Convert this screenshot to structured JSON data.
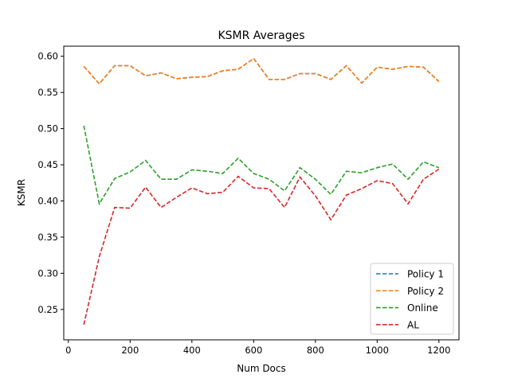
{
  "chart_data": {
    "type": "line",
    "title": "KSMR Averages",
    "xlabel": "Num Docs",
    "ylabel": "KSMR",
    "xlim": [
      -15,
      1265
    ],
    "ylim": [
      0.208,
      0.614
    ],
    "xticks": [
      "0",
      "200",
      "400",
      "600",
      "800",
      "1000",
      "1200"
    ],
    "xtick_values": [
      0,
      200,
      400,
      600,
      800,
      1000,
      1200
    ],
    "yticks": [
      "0.25",
      "0.30",
      "0.35",
      "0.40",
      "0.45",
      "0.50",
      "0.55",
      "0.60"
    ],
    "ytick_values": [
      0.25,
      0.3,
      0.35,
      0.4,
      0.45,
      0.5,
      0.55,
      0.6
    ],
    "legend_position": "lower-right",
    "grid": false,
    "x": [
      50,
      100,
      150,
      200,
      250,
      300,
      350,
      400,
      450,
      500,
      550,
      600,
      650,
      700,
      750,
      800,
      850,
      900,
      950,
      1000,
      1050,
      1100,
      1150,
      1200
    ],
    "series": [
      {
        "name": "Policy 1",
        "color": "#1f77b4",
        "values": [
          0.586,
          0.562,
          0.587,
          0.587,
          0.573,
          0.577,
          0.569,
          0.571,
          0.572,
          0.58,
          0.582,
          0.597,
          0.568,
          0.568,
          0.576,
          0.576,
          0.568,
          0.587,
          0.563,
          0.585,
          0.582,
          0.586,
          0.585,
          0.565
        ]
      },
      {
        "name": "Policy 2",
        "color": "#ff7f0e",
        "values": [
          0.586,
          0.562,
          0.587,
          0.587,
          0.573,
          0.577,
          0.569,
          0.571,
          0.572,
          0.58,
          0.582,
          0.597,
          0.568,
          0.568,
          0.576,
          0.576,
          0.568,
          0.587,
          0.563,
          0.585,
          0.582,
          0.586,
          0.585,
          0.565
        ]
      },
      {
        "name": "Online",
        "color": "#2ca02c",
        "values": [
          0.504,
          0.396,
          0.431,
          0.44,
          0.456,
          0.43,
          0.43,
          0.443,
          0.441,
          0.438,
          0.459,
          0.438,
          0.43,
          0.414,
          0.446,
          0.43,
          0.409,
          0.441,
          0.439,
          0.446,
          0.451,
          0.43,
          0.454,
          0.446
        ]
      },
      {
        "name": "AL",
        "color": "#d62728",
        "values": [
          0.229,
          0.323,
          0.391,
          0.39,
          0.419,
          0.391,
          0.405,
          0.418,
          0.41,
          0.412,
          0.434,
          0.418,
          0.417,
          0.391,
          0.433,
          0.407,
          0.374,
          0.408,
          0.417,
          0.428,
          0.424,
          0.396,
          0.43,
          0.444
        ]
      }
    ]
  }
}
